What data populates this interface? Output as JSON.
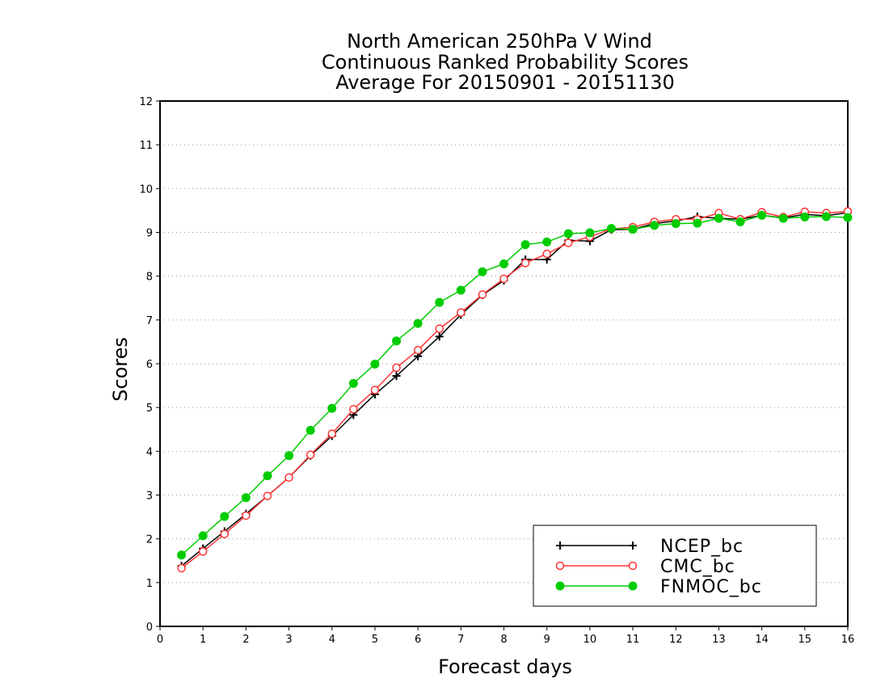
{
  "chart_data": {
    "type": "line",
    "title_lines": [
      "North American 250hPa V Wind",
      "Continuous Ranked Probability Scores",
      "Average For 20150901 - 20151130"
    ],
    "xlabel": "Forecast days",
    "ylabel": "Scores",
    "xlim": [
      0,
      16
    ],
    "ylim": [
      0,
      12
    ],
    "x_ticks": [
      0,
      1,
      2,
      3,
      4,
      5,
      6,
      7,
      8,
      9,
      10,
      11,
      12,
      13,
      14,
      15,
      16
    ],
    "y_ticks": [
      0,
      1,
      2,
      3,
      4,
      5,
      6,
      7,
      8,
      9,
      10,
      11,
      12
    ],
    "grid": "horizontal dotted",
    "legend_position": "bottom-right",
    "x": [
      0.5,
      1,
      1.5,
      2,
      2.5,
      3,
      3.5,
      4,
      4.5,
      5,
      5.5,
      6,
      6.5,
      7,
      7.5,
      8,
      8.5,
      9,
      9.5,
      10,
      10.5,
      11,
      11.5,
      12,
      12.5,
      13,
      13.5,
      14,
      14.5,
      15,
      15.5,
      16
    ],
    "series": [
      {
        "name": "NCEP_bc",
        "color": "#000000",
        "marker": "plus",
        "values": [
          1.38,
          1.78,
          2.17,
          2.57,
          2.98,
          3.4,
          3.9,
          4.35,
          4.83,
          5.3,
          5.72,
          6.17,
          6.62,
          7.12,
          7.57,
          7.9,
          8.38,
          8.38,
          8.82,
          8.8,
          9.06,
          9.07,
          9.2,
          9.26,
          9.36,
          9.32,
          9.3,
          9.39,
          9.33,
          9.41,
          9.38,
          9.45
        ]
      },
      {
        "name": "CMC_bc",
        "color": "#ff3333",
        "marker": "open-circle",
        "values": [
          1.33,
          1.71,
          2.11,
          2.53,
          2.98,
          3.4,
          3.92,
          4.4,
          4.96,
          5.4,
          5.91,
          6.31,
          6.8,
          7.17,
          7.58,
          7.94,
          8.3,
          8.51,
          8.76,
          8.9,
          9.08,
          9.12,
          9.24,
          9.3,
          9.3,
          9.44,
          9.3,
          9.46,
          9.35,
          9.47,
          9.44,
          9.48
        ]
      },
      {
        "name": "FNMOC_bc",
        "color": "#00cc00",
        "marker": "filled-circle",
        "values": [
          1.63,
          2.07,
          2.51,
          2.94,
          3.44,
          3.9,
          4.48,
          4.98,
          5.55,
          5.99,
          6.52,
          6.92,
          7.4,
          7.68,
          8.1,
          8.28,
          8.72,
          8.78,
          8.97,
          8.99,
          9.09,
          9.07,
          9.16,
          9.2,
          9.21,
          9.32,
          9.24,
          9.39,
          9.32,
          9.35,
          9.36,
          9.34
        ]
      }
    ]
  }
}
